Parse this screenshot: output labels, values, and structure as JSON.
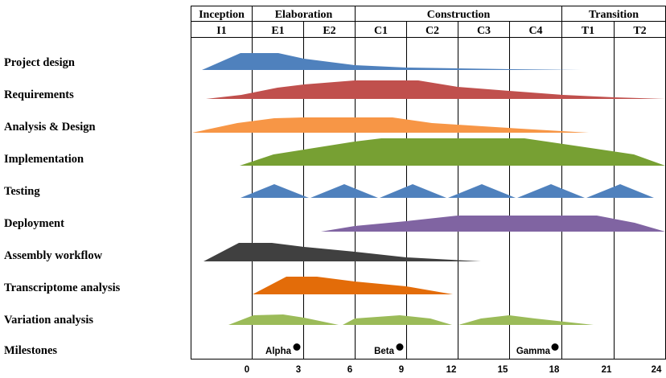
{
  "phases": [
    {
      "label": "Inception",
      "iterations": [
        "I1"
      ]
    },
    {
      "label": "Elaboration",
      "iterations": [
        "E1",
        "E2"
      ]
    },
    {
      "label": "Construction",
      "iterations": [
        "C1",
        "C2",
        "C3",
        "C4"
      ]
    },
    {
      "label": "Transition",
      "iterations": [
        "T1",
        "T2"
      ]
    }
  ],
  "workflows": [
    {
      "label": "Project design",
      "color": "#4f81bd"
    },
    {
      "label": "Requirements",
      "color": "#c0504d"
    },
    {
      "label": "Analysis & Design",
      "color": "#f79646"
    },
    {
      "label": "Implementation",
      "color": "#77a033"
    },
    {
      "label": "Testing",
      "color": "#4f81bd"
    },
    {
      "label": "Deployment",
      "color": "#8064a2"
    },
    {
      "label": "Assembly workflow",
      "color": "#404040"
    },
    {
      "label": "Transcriptome analysis",
      "color": "#e36c09"
    },
    {
      "label": "Variation analysis",
      "color": "#9bbb59"
    },
    {
      "label": "Milestones",
      "color": "#000000"
    }
  ],
  "milestones": [
    {
      "label": "Alpha",
      "week": 3
    },
    {
      "label": "Beta",
      "week": 9
    },
    {
      "label": "Gamma",
      "week": 18
    }
  ],
  "timeline": {
    "ticks": [
      "0",
      "3",
      "6",
      "9",
      "12",
      "15",
      "18",
      "21",
      "24"
    ]
  }
}
